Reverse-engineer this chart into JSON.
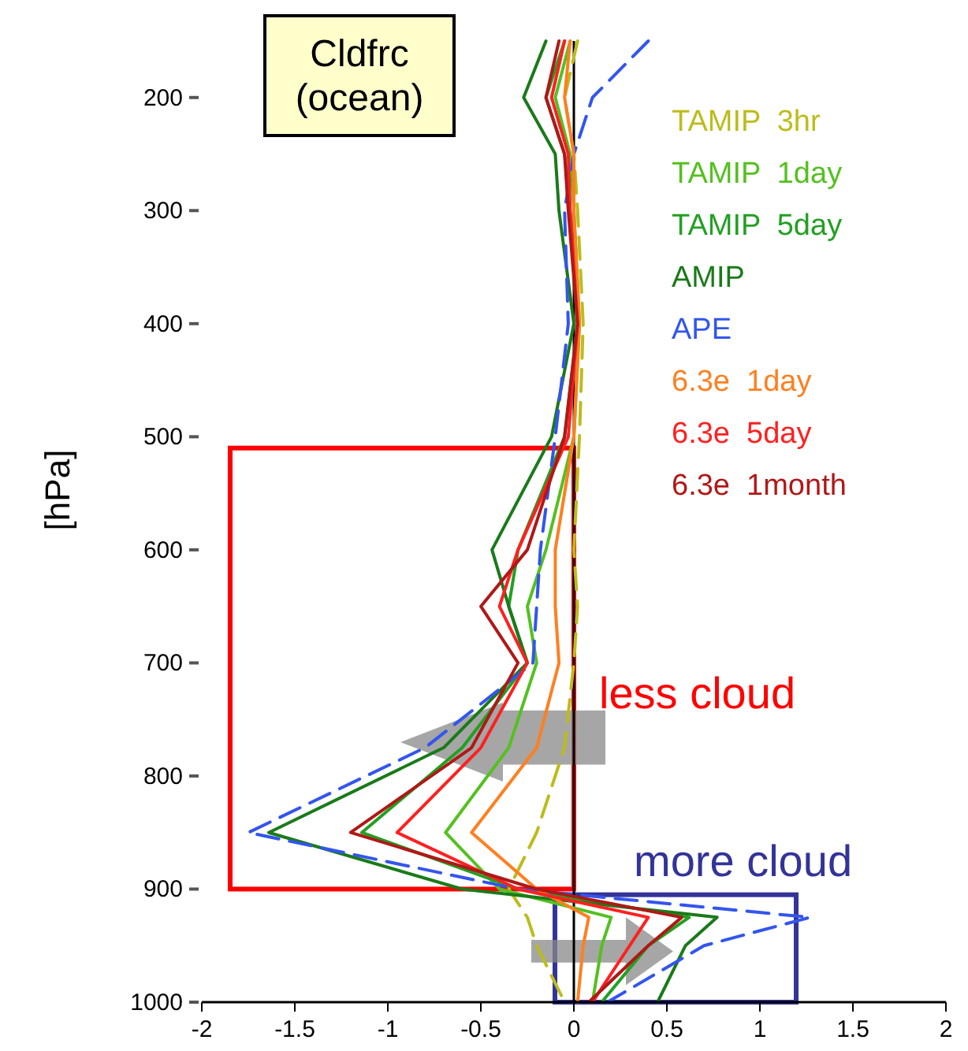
{
  "chart_data": {
    "type": "line",
    "orientation": "horizontal",
    "title": "Cldfrc (ocean)",
    "ylabel": "[hPa]",
    "x": [
      150,
      200,
      250,
      300,
      400,
      500,
      600,
      650,
      700,
      775,
      850,
      900,
      925,
      950,
      1000
    ],
    "xlim": [
      -2,
      2
    ],
    "xticks": [
      -2,
      -1.5,
      -1,
      -0.5,
      0,
      0.5,
      1,
      1.5,
      2
    ],
    "ylim": [
      1000,
      150
    ],
    "yticks": [
      200,
      300,
      400,
      500,
      600,
      700,
      800,
      900,
      1000
    ],
    "grid": false,
    "legend": "top right",
    "series": [
      {
        "name": "TAMIP  3hr",
        "color": "#bcbc1c",
        "line_style": "dashed",
        "values": [
          0.02,
          -0.05,
          0.0,
          0.02,
          0.05,
          0.03,
          0.0,
          0.02,
          0.0,
          -0.05,
          -0.2,
          -0.35,
          -0.25,
          -0.2,
          -0.05
        ]
      },
      {
        "name": "TAMIP  1day",
        "color": "#55c020",
        "line_style": "solid",
        "values": [
          -0.02,
          -0.1,
          -0.02,
          0.0,
          0.03,
          0.0,
          -0.15,
          -0.25,
          -0.2,
          -0.35,
          -0.69,
          -0.4,
          0.2,
          0.15,
          0.1
        ]
      },
      {
        "name": "TAMIP  5day",
        "color": "#22a022",
        "line_style": "solid",
        "values": [
          -0.05,
          -0.15,
          -0.05,
          -0.02,
          0.02,
          -0.05,
          -0.3,
          -0.35,
          -0.25,
          -0.6,
          -1.14,
          -0.3,
          0.62,
          0.4,
          0.15
        ]
      },
      {
        "name": "AMIP",
        "color": "#1a7a1a",
        "line_style": "solid",
        "values": [
          -0.15,
          -0.27,
          -0.1,
          -0.08,
          0.0,
          -0.12,
          -0.44,
          -0.35,
          -0.25,
          -0.7,
          -1.64,
          -0.6,
          0.77,
          0.6,
          0.45
        ]
      },
      {
        "name": "APE",
        "color": "#3355ee",
        "line_style": "dashed",
        "values": [
          0.4,
          0.1,
          0.0,
          -0.05,
          -0.03,
          -0.1,
          -0.18,
          -0.2,
          -0.22,
          -0.8,
          -1.75,
          -0.3,
          1.27,
          0.7,
          0.18
        ]
      },
      {
        "name": "6.3e  1day",
        "color": "#ff7f1f",
        "line_style": "solid",
        "values": [
          -0.02,
          -0.05,
          0.0,
          0.0,
          0.03,
          0.0,
          -0.1,
          -0.1,
          -0.08,
          -0.2,
          -0.55,
          -0.2,
          0.08,
          0.05,
          0.02
        ]
      },
      {
        "name": "6.3e  5day",
        "color": "#ff2020",
        "line_style": "solid",
        "values": [
          -0.05,
          -0.12,
          -0.03,
          -0.02,
          0.02,
          -0.03,
          -0.3,
          -0.4,
          -0.25,
          -0.5,
          -0.95,
          -0.3,
          0.4,
          0.3,
          0.1
        ]
      },
      {
        "name": "6.3e  1month",
        "color": "#b01818",
        "line_style": "solid",
        "values": [
          -0.08,
          -0.15,
          -0.05,
          -0.03,
          0.02,
          -0.05,
          -0.25,
          -0.5,
          -0.3,
          -0.55,
          -1.2,
          -0.2,
          0.58,
          0.4,
          0.08
        ]
      }
    ],
    "ref_lines": [
      {
        "axis": "x",
        "value": 0,
        "color": "#000000"
      }
    ],
    "annotations": [
      "less cloud",
      "more cloud"
    ]
  }
}
